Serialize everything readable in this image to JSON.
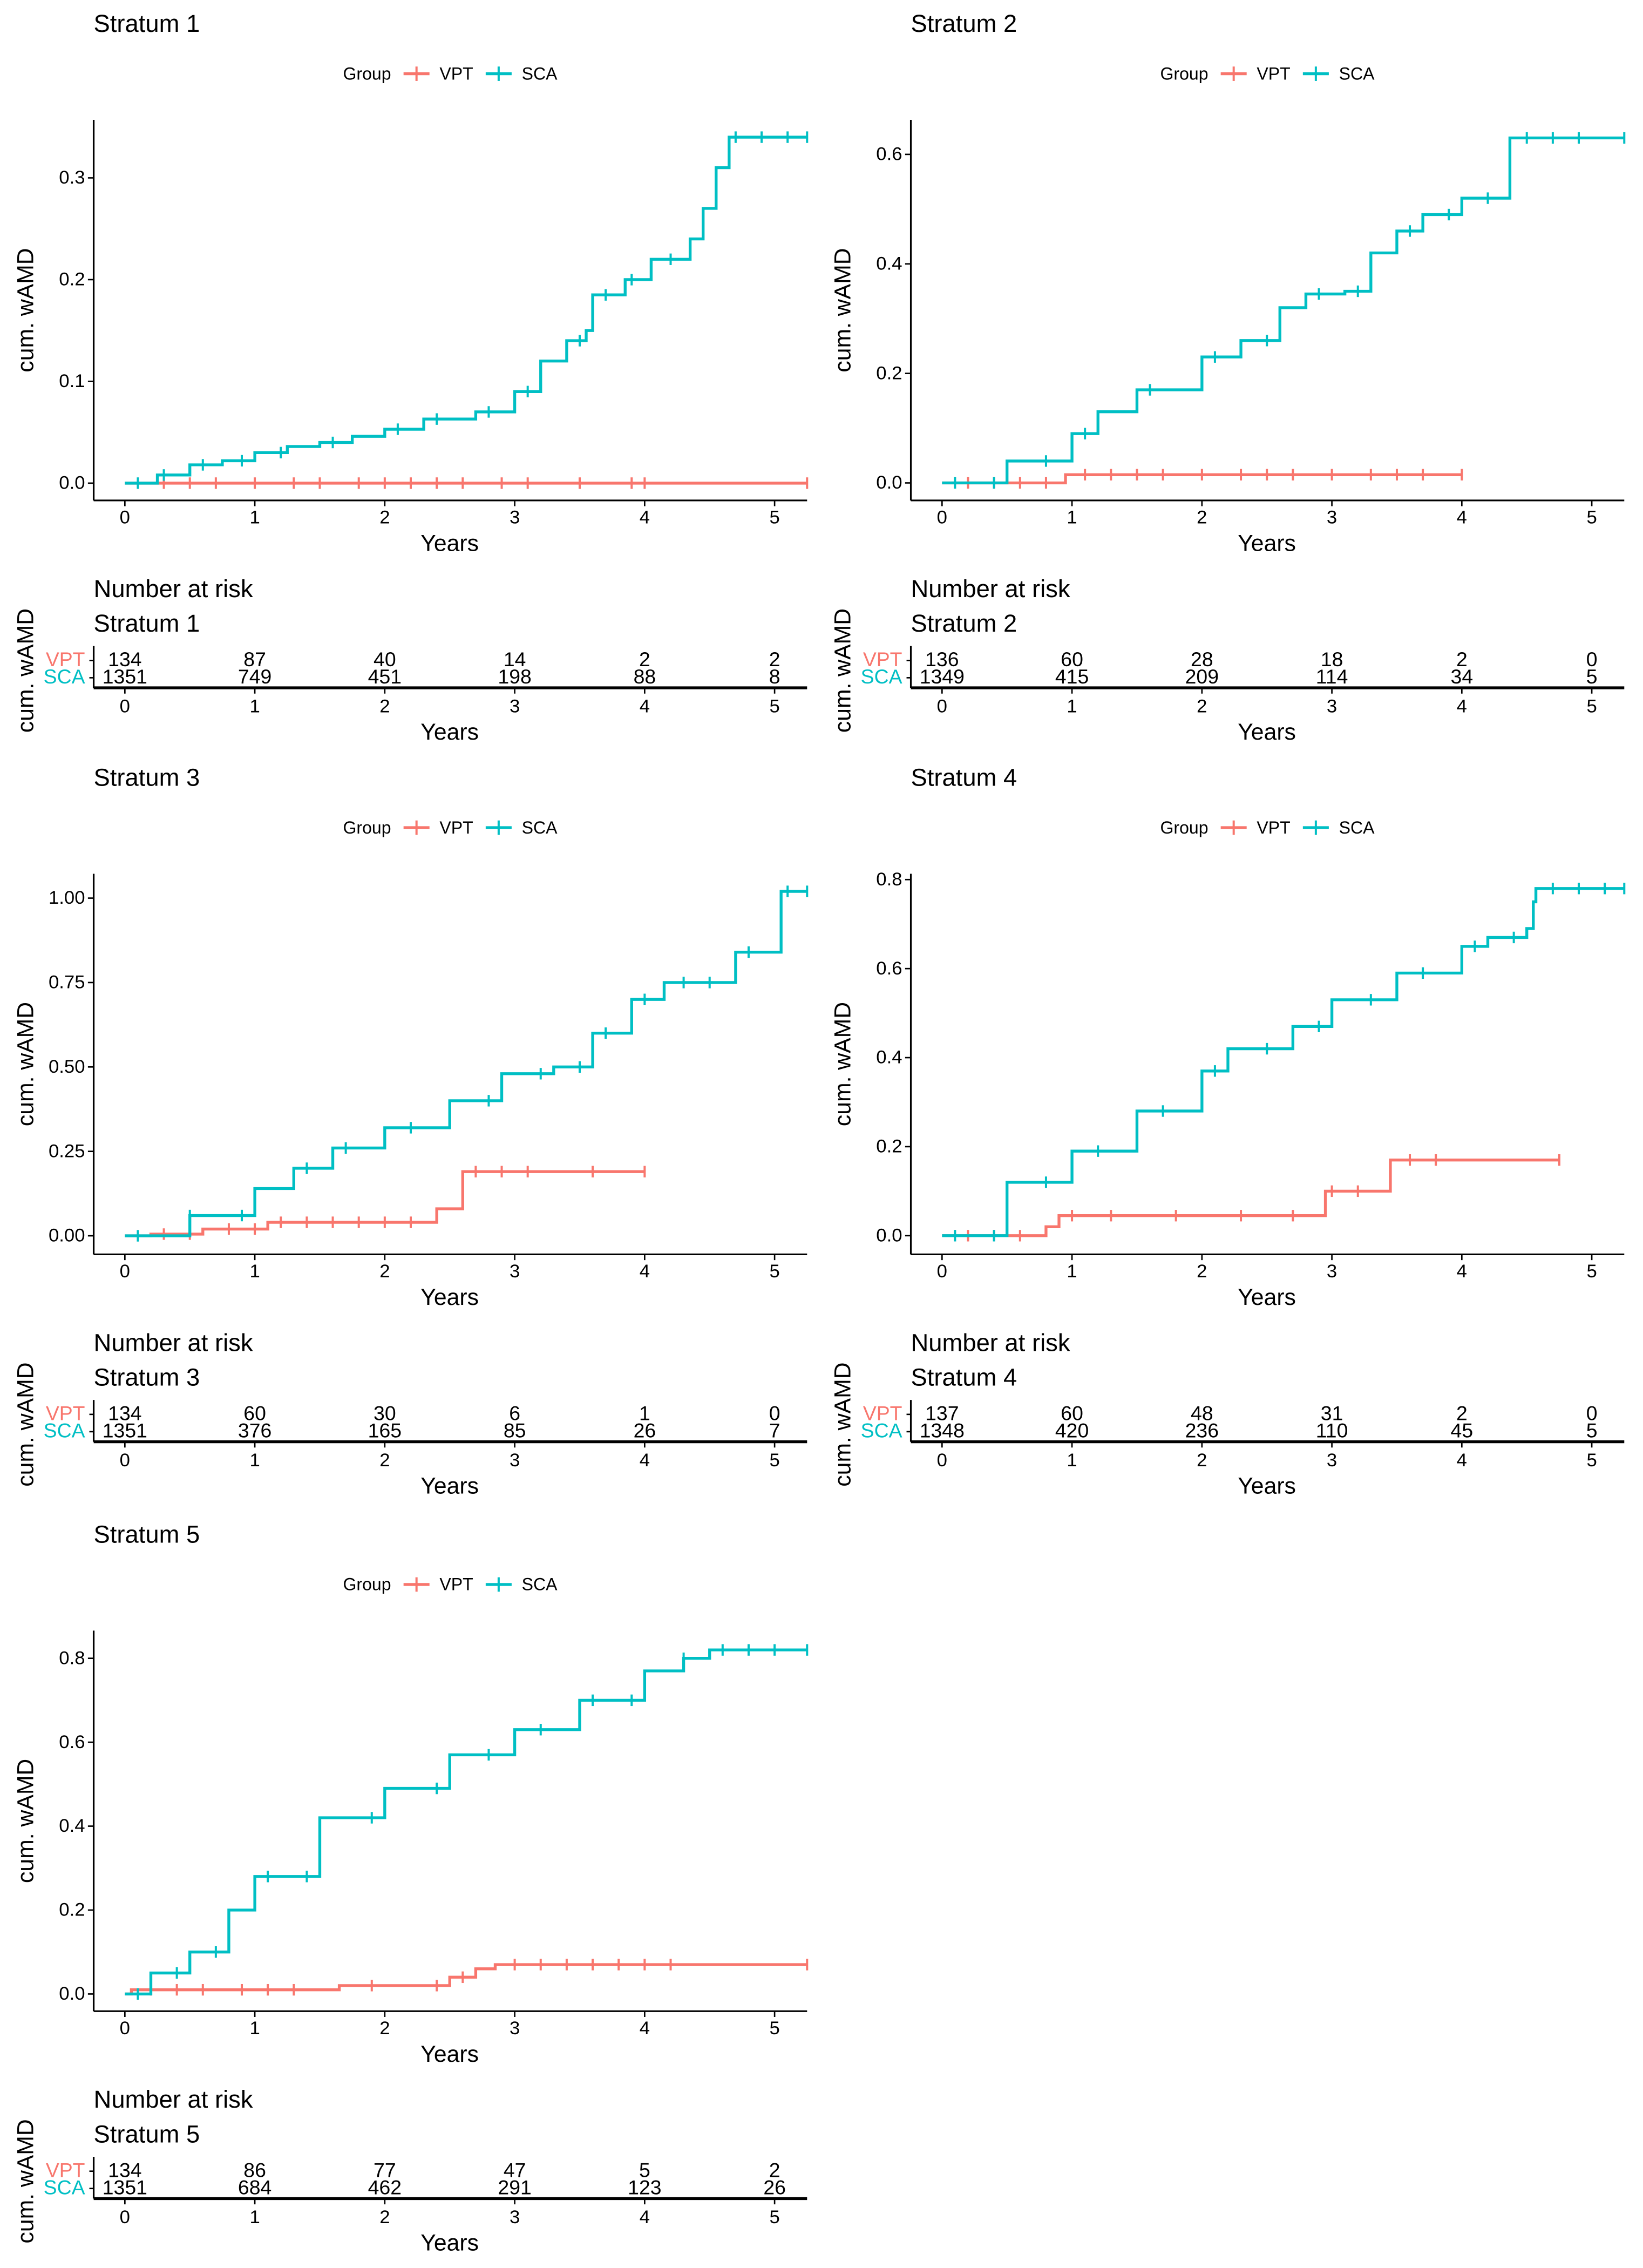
{
  "colors": {
    "VPT": "#F8766D",
    "SCA": "#00BFC4"
  },
  "legend": {
    "title": "Group",
    "labels": [
      "VPT",
      "SCA"
    ]
  },
  "risk_table": {
    "title": "Number at risk",
    "groups": [
      "VPT",
      "SCA"
    ]
  },
  "chart_data": [
    {
      "type": "line",
      "title": "Stratum 1",
      "xlabel": "Years",
      "ylabel": "cum. wAMD",
      "xlim": [
        -0.24,
        5.25
      ],
      "xticks": [
        "0",
        "1",
        "2",
        "3",
        "4",
        "5"
      ],
      "ylim": [
        -0.017,
        0.357
      ],
      "yticks": [
        0,
        0.1,
        0.2,
        0.3
      ],
      "ytick_labels": [
        "0.0",
        "0.1",
        "0.2",
        "0.3"
      ],
      "series": [
        {
          "name": "VPT",
          "x": [
            0,
            5.25
          ],
          "y": [
            0,
            0
          ],
          "censor": [
            0.3,
            0.5,
            0.7,
            1.0,
            1.3,
            1.5,
            1.8,
            2.0,
            2.2,
            2.4,
            2.6,
            2.9,
            3.1,
            3.5,
            3.9,
            4.0,
            5.25
          ]
        },
        {
          "name": "SCA",
          "x": [
            0,
            0.25,
            0.5,
            0.75,
            1,
            1.25,
            1.5,
            1.75,
            2,
            2.3,
            2.7,
            3,
            3.2,
            3.4,
            3.55,
            3.6,
            3.85,
            4.05,
            4.35,
            4.45,
            4.55,
            4.65,
            5.25
          ],
          "y": [
            0,
            0.008,
            0.018,
            0.022,
            0.03,
            0.036,
            0.04,
            0.046,
            0.053,
            0.063,
            0.07,
            0.09,
            0.12,
            0.14,
            0.15,
            0.185,
            0.2,
            0.22,
            0.24,
            0.27,
            0.31,
            0.34,
            0.34
          ],
          "censor": [
            0.1,
            0.3,
            0.6,
            0.9,
            1.2,
            1.6,
            2.1,
            2.4,
            2.8,
            3.1,
            3.5,
            3.7,
            3.9,
            4.2,
            4.7,
            4.9,
            5.1,
            5.25
          ]
        }
      ],
      "risk": {
        "VPT": [
          "134",
          "87",
          "40",
          "14",
          "2",
          "2"
        ],
        "SCA": [
          "1351",
          "749",
          "451",
          "198",
          "88",
          "8"
        ]
      }
    },
    {
      "type": "line",
      "title": "Stratum 2",
      "xlabel": "Years",
      "ylabel": "cum. wAMD",
      "xlim": [
        -0.24,
        5.25
      ],
      "xticks": [
        "0",
        "1",
        "2",
        "3",
        "4",
        "5"
      ],
      "ylim": [
        -0.032,
        0.663
      ],
      "yticks": [
        0,
        0.2,
        0.4,
        0.6
      ],
      "ytick_labels": [
        "0.0",
        "0.2",
        "0.4",
        "0.6"
      ],
      "series": [
        {
          "name": "VPT",
          "x": [
            0,
            0.95,
            0.95,
            4
          ],
          "y": [
            0,
            0,
            0.015,
            0.015
          ],
          "censor": [
            0.2,
            0.4,
            0.6,
            0.8,
            1.1,
            1.3,
            1.5,
            1.7,
            2.0,
            2.3,
            2.5,
            2.7,
            3.0,
            3.3,
            3.5,
            3.7,
            4.0
          ]
        },
        {
          "name": "SCA",
          "x": [
            0,
            0.5,
            1,
            1.2,
            1.5,
            2,
            2.3,
            2.6,
            2.8,
            3.1,
            3.3,
            3.5,
            3.7,
            4,
            4.37,
            4.37,
            5.25
          ],
          "y": [
            0,
            0.04,
            0.09,
            0.13,
            0.17,
            0.23,
            0.26,
            0.32,
            0.345,
            0.35,
            0.42,
            0.46,
            0.49,
            0.52,
            0.52,
            0.63,
            0.63
          ],
          "censor": [
            0.1,
            0.4,
            0.8,
            1.1,
            1.6,
            2.1,
            2.5,
            2.9,
            3.2,
            3.6,
            3.9,
            4.2,
            4.5,
            4.7,
            4.9,
            5.25
          ]
        }
      ],
      "risk": {
        "VPT": [
          "136",
          "60",
          "28",
          "18",
          "2",
          "0"
        ],
        "SCA": [
          "1349",
          "415",
          "209",
          "114",
          "34",
          "5"
        ]
      }
    },
    {
      "type": "line",
      "title": "Stratum 3",
      "xlabel": "Years",
      "ylabel": "cum. wAMD",
      "xlim": [
        -0.24,
        5.25
      ],
      "xticks": [
        "0",
        "1",
        "2",
        "3",
        "4",
        "5"
      ],
      "ylim": [
        -0.055,
        1.072
      ],
      "yticks": [
        0,
        0.25,
        0.5,
        0.75,
        1.0
      ],
      "ytick_labels": [
        "0.00",
        "0.25",
        "0.50",
        "0.75",
        "1.00"
      ],
      "series": [
        {
          "name": "VPT",
          "x": [
            0,
            0.2,
            0.6,
            1.1,
            2.4,
            2.4,
            2.6,
            2.6,
            4
          ],
          "y": [
            0,
            0.005,
            0.02,
            0.04,
            0.04,
            0.08,
            0.08,
            0.19,
            0.19
          ],
          "censor": [
            0.3,
            0.5,
            0.8,
            1.0,
            1.2,
            1.4,
            1.6,
            1.8,
            2.0,
            2.2,
            2.7,
            2.9,
            3.1,
            3.6,
            4.0
          ]
        },
        {
          "name": "SCA",
          "x": [
            0,
            0.5,
            1,
            1.3,
            1.6,
            2,
            2.5,
            2.9,
            3.3,
            3.6,
            3.9,
            4.15,
            4.7,
            4.7,
            5.05,
            5.05,
            5.25
          ],
          "y": [
            0,
            0.06,
            0.14,
            0.2,
            0.26,
            0.32,
            0.4,
            0.48,
            0.5,
            0.6,
            0.7,
            0.75,
            0.75,
            0.84,
            0.84,
            1.02,
            1.02
          ],
          "censor": [
            0.1,
            0.5,
            0.9,
            1.4,
            1.7,
            2.2,
            2.8,
            3.2,
            3.5,
            3.7,
            4.0,
            4.3,
            4.5,
            4.8,
            5.1,
            5.25
          ]
        }
      ],
      "risk": {
        "VPT": [
          "134",
          "60",
          "30",
          "6",
          "1",
          "0"
        ],
        "SCA": [
          "1351",
          "376",
          "165",
          "85",
          "26",
          "7"
        ]
      }
    },
    {
      "type": "line",
      "title": "Stratum 4",
      "xlabel": "Years",
      "ylabel": "cum. wAMD",
      "xlim": [
        -0.24,
        5.25
      ],
      "xticks": [
        "0",
        "1",
        "2",
        "3",
        "4",
        "5"
      ],
      "ylim": [
        -0.042,
        0.813
      ],
      "yticks": [
        0,
        0.2,
        0.4,
        0.6,
        0.8
      ],
      "ytick_labels": [
        "0.0",
        "0.2",
        "0.4",
        "0.6",
        "0.8"
      ],
      "series": [
        {
          "name": "VPT",
          "x": [
            0,
            0.75,
            0.8,
            0.9,
            2.4,
            2.4,
            2.95,
            2.95,
            3.45,
            3.45,
            4.75
          ],
          "y": [
            0,
            0,
            0.02,
            0.045,
            0.045,
            0.045,
            0.07,
            0.1,
            0.1,
            0.17,
            0.17
          ],
          "censor": [
            0.2,
            0.4,
            0.6,
            1.0,
            1.3,
            1.8,
            2.3,
            2.7,
            3.0,
            3.2,
            3.6,
            3.8,
            4.75
          ]
        },
        {
          "name": "SCA",
          "x": [
            0,
            0.5,
            1,
            1.5,
            2,
            2.2,
            2.7,
            3,
            3.5,
            4,
            4.2,
            4.5,
            4.55,
            4.57,
            5.25
          ],
          "y": [
            0,
            0.12,
            0.19,
            0.28,
            0.37,
            0.42,
            0.47,
            0.53,
            0.59,
            0.65,
            0.67,
            0.69,
            0.75,
            0.78,
            0.78
          ],
          "censor": [
            0.1,
            0.4,
            0.8,
            1.2,
            1.7,
            2.1,
            2.5,
            2.9,
            3.3,
            3.7,
            4.1,
            4.4,
            4.7,
            4.9,
            5.1,
            5.25
          ]
        }
      ],
      "risk": {
        "VPT": [
          "137",
          "60",
          "48",
          "31",
          "2",
          "0"
        ],
        "SCA": [
          "1348",
          "420",
          "236",
          "110",
          "45",
          "5"
        ]
      }
    },
    {
      "type": "line",
      "title": "Stratum 5",
      "xlabel": "Years",
      "ylabel": "cum. wAMD",
      "xlim": [
        -0.24,
        5.25
      ],
      "xticks": [
        "0",
        "1",
        "2",
        "3",
        "4",
        "5"
      ],
      "ylim": [
        -0.041,
        0.866
      ],
      "yticks": [
        0,
        0.2,
        0.4,
        0.6,
        0.8
      ],
      "ytick_labels": [
        "0.0",
        "0.2",
        "0.4",
        "0.6",
        "0.8"
      ],
      "series": [
        {
          "name": "VPT",
          "x": [
            0,
            0.05,
            1.65,
            1.65,
            2.3,
            2.5,
            2.7,
            2.85,
            5.25
          ],
          "y": [
            0,
            0.01,
            0.01,
            0.02,
            0.02,
            0.04,
            0.06,
            0.07,
            0.07
          ],
          "censor": [
            0.2,
            0.4,
            0.6,
            0.9,
            1.1,
            1.3,
            1.9,
            2.4,
            2.6,
            3.0,
            3.2,
            3.4,
            3.6,
            3.8,
            4.0,
            4.2,
            5.25
          ]
        },
        {
          "name": "SCA",
          "x": [
            0,
            0.2,
            0.5,
            0.8,
            1,
            1.5,
            2,
            2.5,
            3,
            3.5,
            4,
            4.3,
            4.5,
            5.25
          ],
          "y": [
            0,
            0.05,
            0.1,
            0.2,
            0.28,
            0.42,
            0.49,
            0.57,
            0.63,
            0.7,
            0.77,
            0.8,
            0.82,
            0.82
          ],
          "censor": [
            0.1,
            0.4,
            0.7,
            1.1,
            1.4,
            1.9,
            2.4,
            2.8,
            3.2,
            3.6,
            3.9,
            4.3,
            4.6,
            4.8,
            5.0,
            5.25
          ]
        }
      ],
      "risk": {
        "VPT": [
          "134",
          "86",
          "77",
          "47",
          "5",
          "2"
        ],
        "SCA": [
          "1351",
          "684",
          "462",
          "291",
          "123",
          "26"
        ]
      }
    }
  ]
}
